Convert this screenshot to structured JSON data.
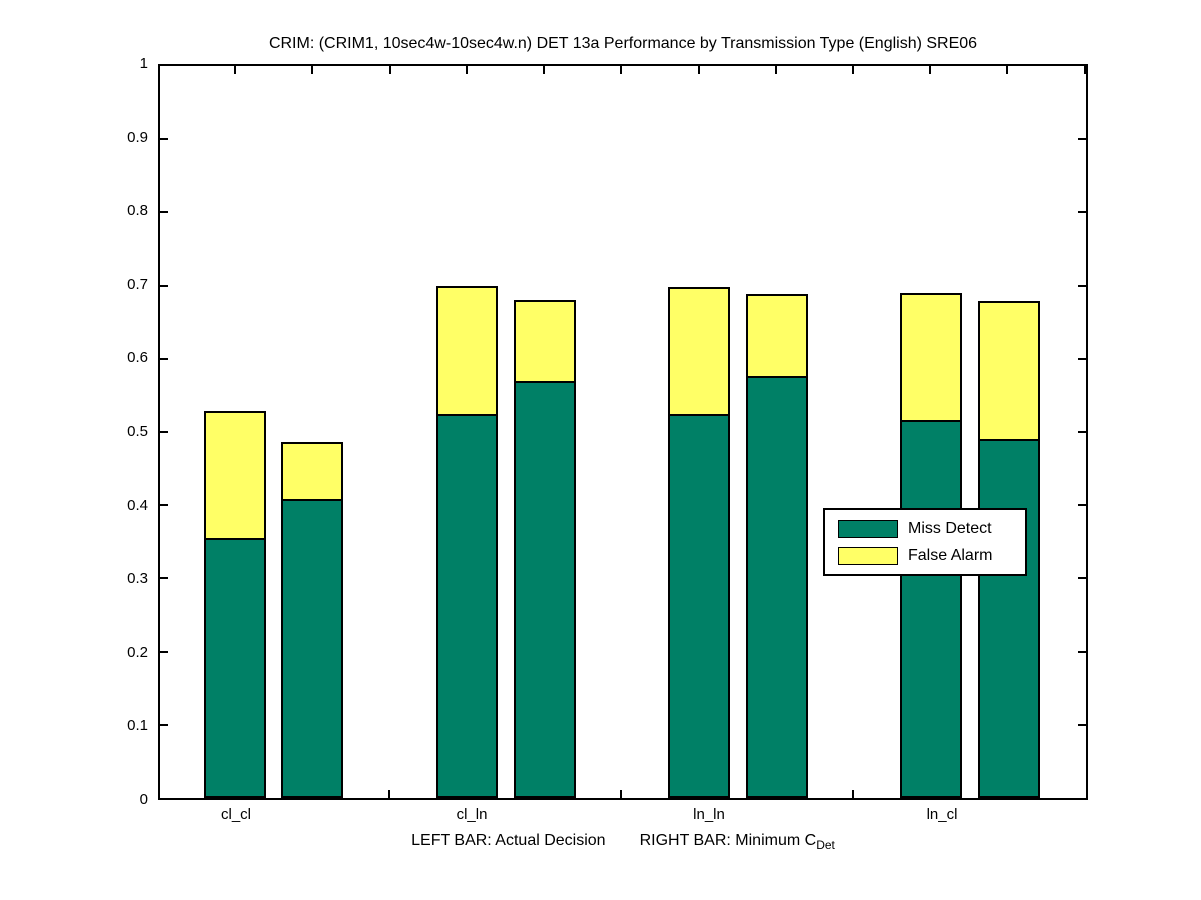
{
  "chart_data": {
    "type": "bar",
    "stacked": true,
    "title": "CRIM: (CRIM1, 10sec4w-10sec4w.n) DET 13a Performance by Transmission Type (English) SRE06",
    "xlabel_left": "LEFT BAR: Actual Decision",
    "xlabel_right": "RIGHT BAR: Minimum C",
    "xlabel_subscript": "Det",
    "ylabel": "",
    "ylim": [
      0,
      1
    ],
    "yticks": [
      "0",
      "0.1",
      "0.2",
      "0.3",
      "0.4",
      "0.5",
      "0.6",
      "0.7",
      "0.8",
      "0.9",
      "1"
    ],
    "categories": [
      "cl_cl",
      "cl_ln",
      "ln_ln",
      "ln_cl"
    ],
    "grid": false,
    "legend_position": "middle-right-overlay",
    "colors": {
      "miss_detect": "#008066",
      "false_alarm": "#ffff66",
      "edge": "#000000",
      "background": "#ffffff"
    },
    "legend": [
      {
        "label": "Miss Detect",
        "series_key": "miss_detect"
      },
      {
        "label": "False Alarm",
        "series_key": "false_alarm"
      }
    ],
    "bar_meaning": {
      "left_bar": "Actual Decision",
      "right_bar": "Minimum C_Det"
    },
    "groups": [
      {
        "category": "cl_cl",
        "bars": [
          {
            "name": "actual_decision",
            "miss_detect": 0.355,
            "false_alarm": 0.173,
            "total": 0.528
          },
          {
            "name": "minimum_cdet",
            "miss_detect": 0.408,
            "false_alarm": 0.078,
            "total": 0.486
          }
        ]
      },
      {
        "category": "cl_ln",
        "bars": [
          {
            "name": "actual_decision",
            "miss_detect": 0.525,
            "false_alarm": 0.175,
            "total": 0.7
          },
          {
            "name": "minimum_cdet",
            "miss_detect": 0.57,
            "false_alarm": 0.11,
            "total": 0.68
          }
        ]
      },
      {
        "category": "ln_ln",
        "bars": [
          {
            "name": "actual_decision",
            "miss_detect": 0.524,
            "false_alarm": 0.174,
            "total": 0.698
          },
          {
            "name": "minimum_cdet",
            "miss_detect": 0.577,
            "false_alarm": 0.112,
            "total": 0.689
          }
        ]
      },
      {
        "category": "ln_cl",
        "bars": [
          {
            "name": "actual_decision",
            "miss_detect": 0.516,
            "false_alarm": 0.174,
            "total": 0.69
          },
          {
            "name": "minimum_cdet",
            "miss_detect": 0.49,
            "false_alarm": 0.188,
            "total": 0.678
          }
        ]
      }
    ]
  }
}
